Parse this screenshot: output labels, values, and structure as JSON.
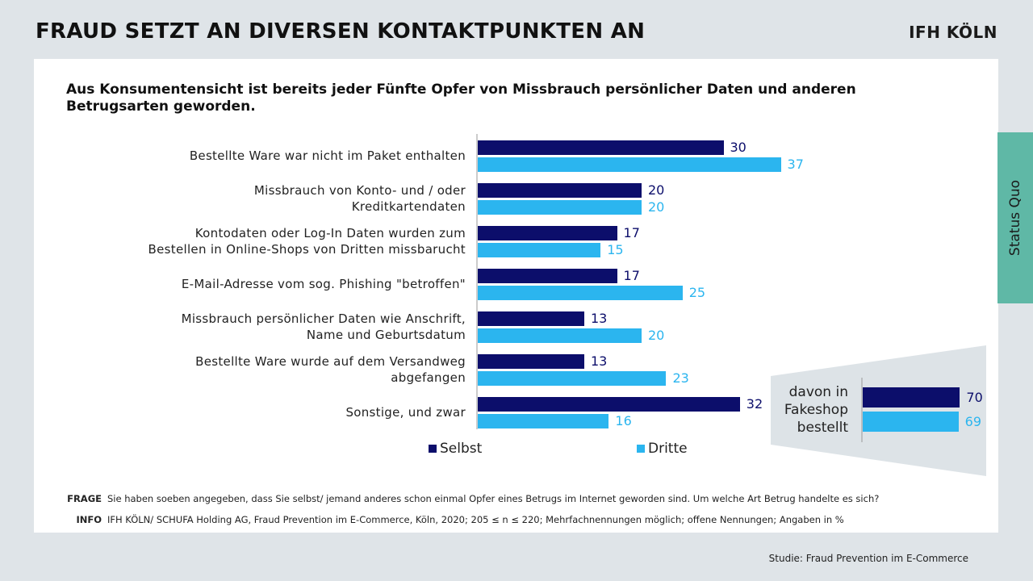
{
  "header": {
    "title": "FRAUD SETZT AN DIVERSEN KONTAKTPUNKTEN AN",
    "logo": "IFH KÖLN"
  },
  "side_tab": {
    "label": "Status Quo"
  },
  "colors": {
    "selbst": "#0c0e6b",
    "dritte": "#2bb5ef",
    "tab": "#5fb8a6"
  },
  "chart_data": [
    {
      "type": "bar",
      "orientation": "horizontal",
      "title": "Aus Konsumentensicht ist bereits jeder Fünfte Opfer von Missbrauch persönlicher Daten und anderen Betrugsarten geworden.",
      "categories": [
        [
          "Bestellte Ware war nicht im Paket enthalten"
        ],
        [
          "Missbrauch von Konto- und / oder",
          "Kreditkartendaten"
        ],
        [
          "Kontodaten oder Log-In Daten wurden zum",
          "Bestellen in Online-Shops von Dritten missbarucht"
        ],
        [
          "E-Mail-Adresse vom sog. Phishing \"betroffen\""
        ],
        [
          "Missbrauch persönlicher Daten wie Anschrift,",
          "Name und Geburtsdatum"
        ],
        [
          "Bestellte Ware wurde auf dem Versandweg",
          "abgefangen"
        ],
        [
          "Sonstige, und zwar"
        ]
      ],
      "series": [
        {
          "name": "Selbst",
          "values": [
            30,
            20,
            17,
            17,
            13,
            13,
            32
          ]
        },
        {
          "name": "Dritte",
          "values": [
            37,
            20,
            15,
            25,
            20,
            23,
            16
          ]
        }
      ],
      "legend": "bottom"
    },
    {
      "type": "bar",
      "orientation": "horizontal",
      "categories": [
        [
          "davon in",
          "Fakeshop",
          "bestellt"
        ]
      ],
      "series": [
        {
          "name": "Selbst",
          "values": [
            70
          ]
        },
        {
          "name": "Dritte",
          "values": [
            69
          ]
        }
      ]
    }
  ],
  "footer": {
    "frage_label": "FRAGE",
    "frage_text": "Sie haben soeben angegeben, dass Sie selbst/ jemand anderes schon einmal Opfer eines Betrugs im Internet geworden sind. Um welche Art Betrug handelte es sich?",
    "info_label": "INFO",
    "info_text": "IFH KÖLN/ SCHUFA Holding AG, Fraud Prevention im E-Commerce, Köln, 2020; 205 ≤ n ≤ 220; Mehrfachnennungen möglich; offene Nennungen; Angaben in %",
    "source": "Studie: Fraud Prevention im E-Commerce"
  }
}
